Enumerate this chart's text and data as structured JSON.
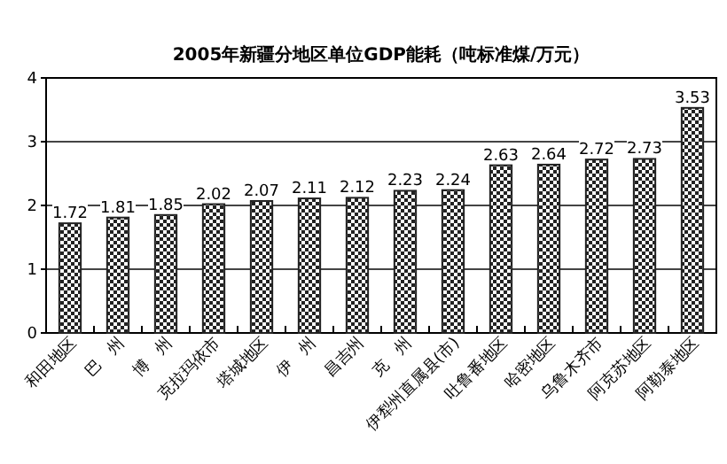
{
  "chart_data": {
    "type": "bar",
    "title": "2005年新疆分地区单位GDP能耗（吨标准煤/万元）",
    "categories": [
      "和田地区",
      "巴　州",
      "博　州",
      "克拉玛依市",
      "塔城地区",
      "伊　州",
      "昌吉州",
      "克　州",
      "伊犁州直属县(市)",
      "吐鲁番地区",
      "哈密地区",
      "乌鲁木齐市",
      "阿克苏地区",
      "阿勒泰地区"
    ],
    "values": [
      1.72,
      1.81,
      1.85,
      2.02,
      2.07,
      2.11,
      2.12,
      2.23,
      2.24,
      2.63,
      2.64,
      2.72,
      2.73,
      3.53
    ],
    "color": "#222222",
    "ylim": [
      0,
      4
    ],
    "yticks": [
      0,
      1,
      2,
      3,
      4
    ],
    "grid": "y",
    "data_labels": true
  }
}
